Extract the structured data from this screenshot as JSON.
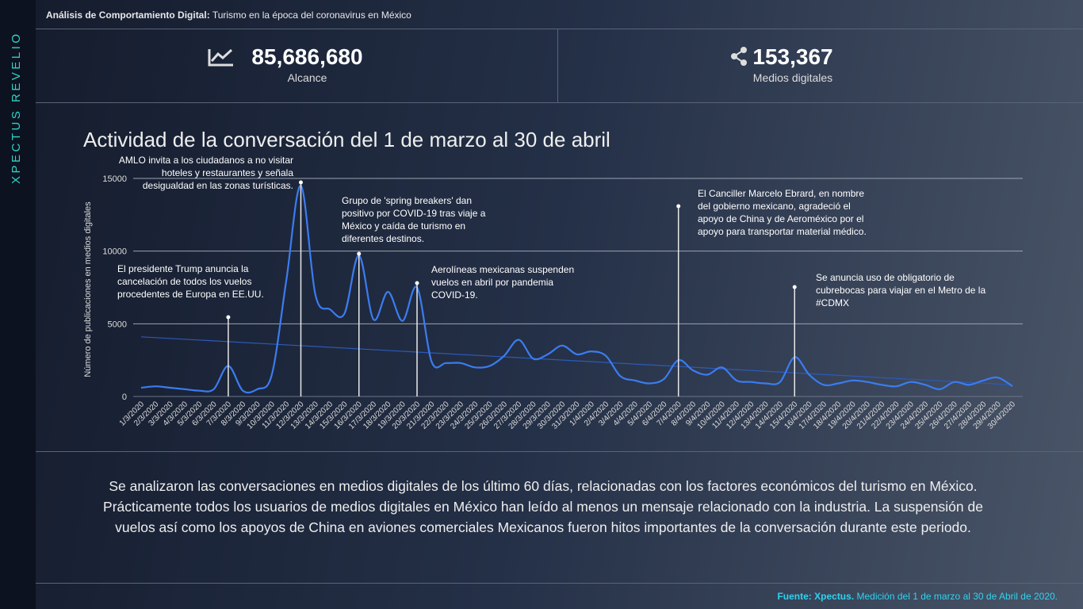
{
  "sidebar": "XPECTUS REVELIO",
  "header": {
    "bold": "Análisis de Comportamiento Digital:",
    "text": "Turismo en la época del coronavirus en México"
  },
  "kpis": [
    {
      "value": "85,686,680",
      "label": "Alcance"
    },
    {
      "value": "153,367",
      "label": "Medios digitales"
    }
  ],
  "chart_data": {
    "type": "line",
    "title": "Actividad de la conversación del 1 de marzo al 30 de abril",
    "y_label": "Número de publicaciones en medios digitales",
    "categories": [
      "1/3/2020",
      "2/3/2020",
      "3/3/2020",
      "4/3/2020",
      "5/3/2020",
      "6/3/2020",
      "7/3/2020",
      "8/3/2020",
      "9/3/2020",
      "10/3/2020",
      "11/3/2020",
      "12/3/2020",
      "13/3/2020",
      "14/3/2020",
      "15/3/2020",
      "16/3/2020",
      "17/3/2020",
      "18/3/2020",
      "19/3/2020",
      "20/3/2020",
      "21/3/2020",
      "22/3/2020",
      "23/3/2020",
      "24/3/2020",
      "25/3/2020",
      "26/3/2020",
      "27/3/2020",
      "28/3/2020",
      "29/3/2020",
      "30/3/2020",
      "31/3/2020",
      "1/4/2020",
      "2/4/2020",
      "3/4/2020",
      "4/4/2020",
      "5/4/2020",
      "6/4/2020",
      "7/4/2020",
      "8/4/2020",
      "9/4/2020",
      "10/4/2020",
      "11/4/2020",
      "12/4/2020",
      "13/4/2020",
      "14/4/2020",
      "15/4/2020",
      "16/4/2020",
      "17/4/2020",
      "18/4/2020",
      "19/4/2020",
      "20/4/2020",
      "21/4/2020",
      "22/4/2020",
      "23/4/2020",
      "24/4/2020",
      "25/4/2020",
      "26/4/2020",
      "27/4/2020",
      "28/4/2020",
      "29/4/2020",
      "30/4/2020"
    ],
    "values": [
      600,
      700,
      600,
      500,
      400,
      500,
      2100,
      400,
      500,
      1500,
      8000,
      14500,
      7000,
      6000,
      5700,
      9700,
      5300,
      7200,
      5200,
      7500,
      2400,
      2300,
      2300,
      2000,
      2100,
      2800,
      3900,
      2600,
      2900,
      3500,
      2900,
      3100,
      2800,
      1400,
      1100,
      900,
      1200,
      2500,
      1800,
      1500,
      2000,
      1100,
      1000,
      900,
      1000,
      2700,
      1500,
      800,
      900,
      1100,
      1000,
      800,
      700,
      1000,
      800,
      500,
      1000,
      800,
      1100,
      1300,
      700
    ],
    "color": "#3b7cf0",
    "trend_values": [
      4100,
      800
    ],
    "trend_color": "#2d5ab8",
    "ylim": [
      0,
      15000
    ],
    "yticks": [
      0,
      5000,
      10000,
      15000
    ],
    "grid": true,
    "annotations": [
      {
        "date": "7/3/2020",
        "lines": [
          "El presidente Trump anuncia la",
          "cancelación de todos los vuelos",
          "procedentes de Europa en EE.UU."
        ]
      },
      {
        "date": "12/3/2020",
        "lines": [
          "AMLO invita a los ciudadanos a no visitar",
          "hoteles y restaurantes y señala",
          "desigualdad en las zonas turísticas."
        ]
      },
      {
        "date": "16/3/2020",
        "lines": [
          "Grupo de 'spring breakers' dan",
          "positivo por COVID-19 tras viaje a",
          "México y caída de turismo en",
          "diferentes destinos."
        ]
      },
      {
        "date": "20/3/2020",
        "lines": [
          "Aerolíneas mexicanas suspenden",
          "vuelos en abril  por pandemia",
          "COVID-19."
        ]
      },
      {
        "date": "7/4/2020",
        "lines": [
          "El Canciller Marcelo Ebrard,  en nombre",
          "del gobierno mexicano,  agradeció el",
          "apoyo de China y de Aeroméxico por el",
          "apoyo para transportar material médico."
        ]
      },
      {
        "date": "15/4/2020",
        "lines": [
          "Se anuncia  uso de obligatorio de",
          "cubrebocas para viajar en el Metro de la",
          "#CDMX"
        ]
      }
    ]
  },
  "description": "Se analizaron las conversaciones en medios digitales de los último 60 días, relacionadas con los factores económicos del turismo en México. Prácticamente todos los usuarios de medios digitales en México han leído al menos un mensaje relacionado con la industria. La suspensión de vuelos así como los apoyos de China en aviones comerciales Mexicanos fueron hitos importantes de la conversación durante este periodo.",
  "footer": {
    "bold": "Fuente: Xpectus.",
    "text": "Medición del 1 de marzo al 30 de Abril de 2020."
  }
}
